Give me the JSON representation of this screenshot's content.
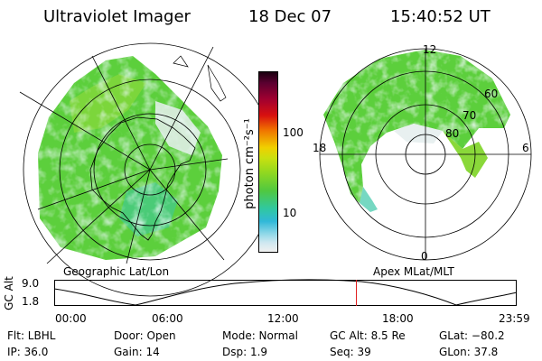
{
  "header": {
    "instrument": "Ultraviolet Imager",
    "date": "18 Dec 07",
    "time": "15:40:52 UT"
  },
  "colorbar": {
    "unit": "photon cm⁻²s⁻¹",
    "tick_labels": [
      "100",
      "10"
    ],
    "colors": [
      "#1a0010",
      "#5a0030",
      "#a00030",
      "#d81010",
      "#f07000",
      "#f0a000",
      "#f0d000",
      "#c8e010",
      "#90d820",
      "#50c840",
      "#30c8a0",
      "#30b8d8",
      "#90d8e8",
      "#d0e8f0",
      "#f0f0f0"
    ]
  },
  "left_map": {
    "label": "Geographic Lat/Lon",
    "aurora_color": "#50d040"
  },
  "right_map": {
    "label": "Apex MLat/MLT",
    "mlt_labels": {
      "top": "12",
      "left": "18",
      "right": "6",
      "bottom": "0"
    },
    "lat_labels": [
      "60",
      "70",
      "80"
    ]
  },
  "timeline": {
    "axis_label": "GC Alt",
    "y_ticks": [
      "9.0",
      "1.8"
    ],
    "x_ticks": [
      "00:00",
      "06:00",
      "12:00",
      "18:00",
      "23:59"
    ],
    "current_time_fraction": 0.6534,
    "marker_color": "#e02020"
  },
  "info": {
    "filter": "Flt: LBHL",
    "door": "Door: Open",
    "mode": "Mode: Normal",
    "gc_alt": "GC Alt: 8.5 Re",
    "glat": "GLat: −80.2",
    "ip": "IP: 36.0",
    "gain": "Gain: 14",
    "dsp": "Dsp:    1.9",
    "seq": "Seq: 39",
    "glon": "GLon:  37.8"
  }
}
